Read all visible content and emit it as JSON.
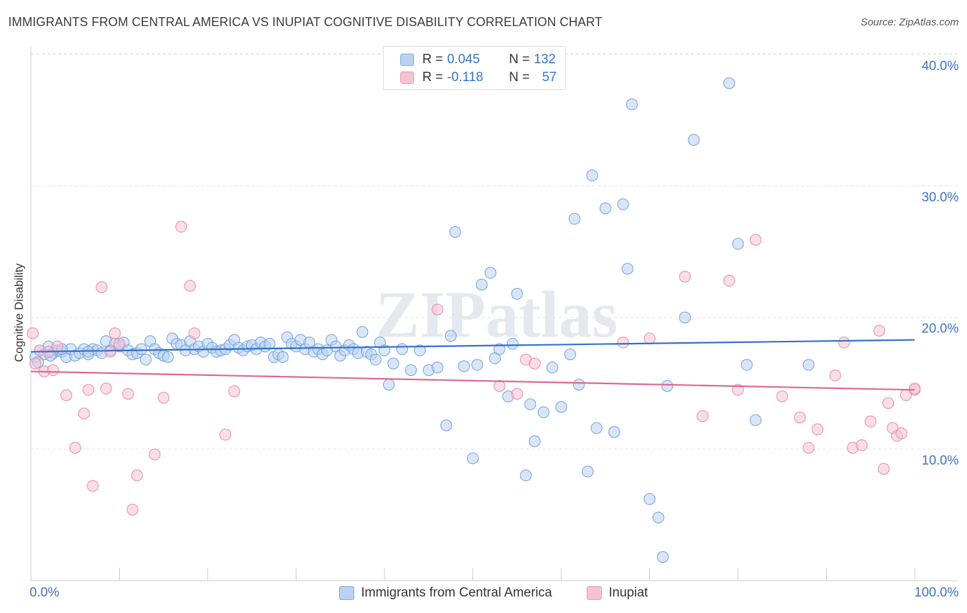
{
  "title": "IMMIGRANTS FROM CENTRAL AMERICA VS INUPIAT COGNITIVE DISABILITY CORRELATION CHART",
  "source": "Source: ZipAtlas.com",
  "watermark": "ZIPatlas",
  "legend": {
    "r_label": "R = ",
    "n_label": "N = ",
    "rows": [
      {
        "r": "0.045",
        "n": "132"
      },
      {
        "r": "-0.118",
        "n": "57"
      }
    ]
  },
  "chart_data": {
    "type": "scatter",
    "title": "IMMIGRANTS FROM CENTRAL AMERICA VS INUPIAT COGNITIVE DISABILITY CORRELATION CHART",
    "xlabel": "",
    "ylabel": "Cognitive Disability",
    "xlim": [
      0,
      100
    ],
    "ylim": [
      0,
      42
    ],
    "x_tick_labels": [
      "0.0%",
      "100.0%"
    ],
    "y_ticks": [
      10,
      20,
      30,
      40
    ],
    "y_tick_labels": [
      "10.0%",
      "20.0%",
      "30.0%",
      "40.0%"
    ],
    "grid": true,
    "legend_position": "top-center",
    "series": [
      {
        "name": "Immigrants from Central America",
        "color": "#6fa0dc",
        "fill": "#b9d2f2",
        "trend": [
          [
            0,
            17.4
          ],
          [
            100,
            18.3
          ]
        ],
        "points": [
          [
            0.5,
            17.0
          ],
          [
            1,
            17.5
          ],
          [
            1.5,
            17.2
          ],
          [
            2,
            17.8
          ],
          [
            2.5,
            17.3
          ],
          [
            3,
            17.5
          ],
          [
            3.5,
            17.4
          ],
          [
            4,
            17.0
          ],
          [
            4.5,
            17.6
          ],
          [
            5,
            17.1
          ],
          [
            5.5,
            17.3
          ],
          [
            6,
            17.6
          ],
          [
            6.5,
            17.2
          ],
          [
            7,
            17.6
          ],
          [
            7.5,
            17.5
          ],
          [
            8,
            17.3
          ],
          [
            8.5,
            18.2
          ],
          [
            9,
            17.5
          ],
          [
            9.5,
            18.0
          ],
          [
            10,
            17.8
          ],
          [
            10.5,
            18.1
          ],
          [
            11,
            17.5
          ],
          [
            11.5,
            17.2
          ],
          [
            12,
            17.3
          ],
          [
            12.5,
            17.6
          ],
          [
            13,
            16.8
          ],
          [
            13.5,
            18.2
          ],
          [
            14,
            17.6
          ],
          [
            14.5,
            17.3
          ],
          [
            15,
            17.1
          ],
          [
            15.5,
            17.0
          ],
          [
            16,
            18.4
          ],
          [
            16.5,
            18.0
          ],
          [
            17,
            17.9
          ],
          [
            17.5,
            17.5
          ],
          [
            18,
            18.2
          ],
          [
            18.5,
            17.6
          ],
          [
            19,
            17.8
          ],
          [
            19.5,
            17.4
          ],
          [
            20,
            18.0
          ],
          [
            20.5,
            17.7
          ],
          [
            21,
            17.4
          ],
          [
            21.5,
            17.5
          ],
          [
            22,
            17.6
          ],
          [
            22.5,
            17.9
          ],
          [
            23,
            18.3
          ],
          [
            23.5,
            17.7
          ],
          [
            24,
            17.5
          ],
          [
            24.5,
            17.8
          ],
          [
            25,
            17.9
          ],
          [
            25.5,
            17.6
          ],
          [
            26,
            18.1
          ],
          [
            26.5,
            17.8
          ],
          [
            27,
            18.0
          ],
          [
            27.5,
            17.0
          ],
          [
            28,
            17.2
          ],
          [
            28.5,
            17.0
          ],
          [
            29,
            18.5
          ],
          [
            29.5,
            18.0
          ],
          [
            30,
            17.8
          ],
          [
            30.5,
            18.3
          ],
          [
            31,
            17.6
          ],
          [
            31.5,
            18.1
          ],
          [
            32,
            17.4
          ],
          [
            32.5,
            17.6
          ],
          [
            33,
            17.2
          ],
          [
            33.5,
            17.5
          ],
          [
            34,
            18.3
          ],
          [
            34.5,
            17.8
          ],
          [
            35,
            17.1
          ],
          [
            35.5,
            17.5
          ],
          [
            36,
            17.9
          ],
          [
            36.5,
            17.6
          ],
          [
            37,
            17.3
          ],
          [
            37.5,
            18.9
          ],
          [
            38,
            17.4
          ],
          [
            38.5,
            17.2
          ],
          [
            39,
            16.8
          ],
          [
            39.5,
            18.1
          ],
          [
            40,
            17.5
          ],
          [
            40.5,
            14.9
          ],
          [
            41,
            16.5
          ],
          [
            42,
            17.6
          ],
          [
            43,
            16.0
          ],
          [
            44,
            17.5
          ],
          [
            45,
            16.0
          ],
          [
            46,
            16.2
          ],
          [
            47,
            11.8
          ],
          [
            47.5,
            18.6
          ],
          [
            48,
            26.5
          ],
          [
            49,
            16.3
          ],
          [
            50,
            9.3
          ],
          [
            50.5,
            16.4
          ],
          [
            51,
            22.5
          ],
          [
            52,
            23.4
          ],
          [
            52.5,
            16.9
          ],
          [
            53,
            17.6
          ],
          [
            54,
            14.0
          ],
          [
            54.5,
            18.0
          ],
          [
            55,
            21.8
          ],
          [
            56,
            8.0
          ],
          [
            56.5,
            13.4
          ],
          [
            57,
            10.6
          ],
          [
            58,
            12.8
          ],
          [
            59,
            16.2
          ],
          [
            60,
            13.2
          ],
          [
            61,
            17.2
          ],
          [
            61.5,
            27.5
          ],
          [
            62,
            14.9
          ],
          [
            63,
            8.3
          ],
          [
            63.5,
            30.8
          ],
          [
            64,
            11.6
          ],
          [
            65,
            28.3
          ],
          [
            66,
            11.3
          ],
          [
            67,
            28.6
          ],
          [
            67.5,
            23.7
          ],
          [
            68,
            36.2
          ],
          [
            70,
            6.2
          ],
          [
            71,
            4.8
          ],
          [
            71.5,
            1.8
          ],
          [
            72,
            14.8
          ],
          [
            74,
            20.0
          ],
          [
            75,
            33.5
          ],
          [
            79,
            37.8
          ],
          [
            80,
            25.6
          ],
          [
            81,
            16.4
          ],
          [
            82,
            12.2
          ],
          [
            88,
            16.4
          ],
          [
            3.5,
            17.6
          ],
          [
            6.5,
            17.4
          ],
          [
            0.8,
            16.6
          ],
          [
            2.2,
            17.1
          ]
        ]
      },
      {
        "name": "Inupiat",
        "color": "#e888a8",
        "fill": "#f6c3d3",
        "trend": [
          [
            0,
            15.9
          ],
          [
            100,
            14.5
          ]
        ],
        "points": [
          [
            0.2,
            18.8
          ],
          [
            0.5,
            16.5
          ],
          [
            1,
            17.5
          ],
          [
            1.5,
            15.9
          ],
          [
            2,
            17.4
          ],
          [
            2.5,
            16.0
          ],
          [
            3,
            17.8
          ],
          [
            4,
            14.1
          ],
          [
            5,
            10.1
          ],
          [
            6,
            12.7
          ],
          [
            6.5,
            14.5
          ],
          [
            7,
            7.2
          ],
          [
            8,
            22.3
          ],
          [
            8.5,
            14.6
          ],
          [
            9,
            17.4
          ],
          [
            9.5,
            18.8
          ],
          [
            10,
            18.0
          ],
          [
            11,
            14.2
          ],
          [
            11.5,
            5.4
          ],
          [
            12,
            8.0
          ],
          [
            14,
            9.6
          ],
          [
            15,
            13.9
          ],
          [
            17,
            26.9
          ],
          [
            18,
            22.4
          ],
          [
            18.5,
            18.8
          ],
          [
            22,
            11.1
          ],
          [
            23,
            14.4
          ],
          [
            46,
            20.6
          ],
          [
            53,
            14.8
          ],
          [
            55,
            14.2
          ],
          [
            56,
            16.8
          ],
          [
            57,
            16.5
          ],
          [
            67,
            18.1
          ],
          [
            70,
            18.4
          ],
          [
            74,
            23.1
          ],
          [
            76,
            12.5
          ],
          [
            79,
            22.8
          ],
          [
            80,
            14.5
          ],
          [
            82,
            25.9
          ],
          [
            85,
            14.0
          ],
          [
            87,
            12.4
          ],
          [
            88,
            10.1
          ],
          [
            89,
            11.5
          ],
          [
            91,
            15.6
          ],
          [
            92,
            18.1
          ],
          [
            93,
            10.1
          ],
          [
            94,
            10.3
          ],
          [
            95,
            12.1
          ],
          [
            96,
            19.0
          ],
          [
            96.5,
            8.5
          ],
          [
            97,
            13.5
          ],
          [
            97.5,
            11.6
          ],
          [
            98,
            11.0
          ],
          [
            98.5,
            11.2
          ],
          [
            99,
            14.1
          ],
          [
            100,
            14.5
          ],
          [
            100,
            14.6
          ]
        ]
      }
    ]
  }
}
